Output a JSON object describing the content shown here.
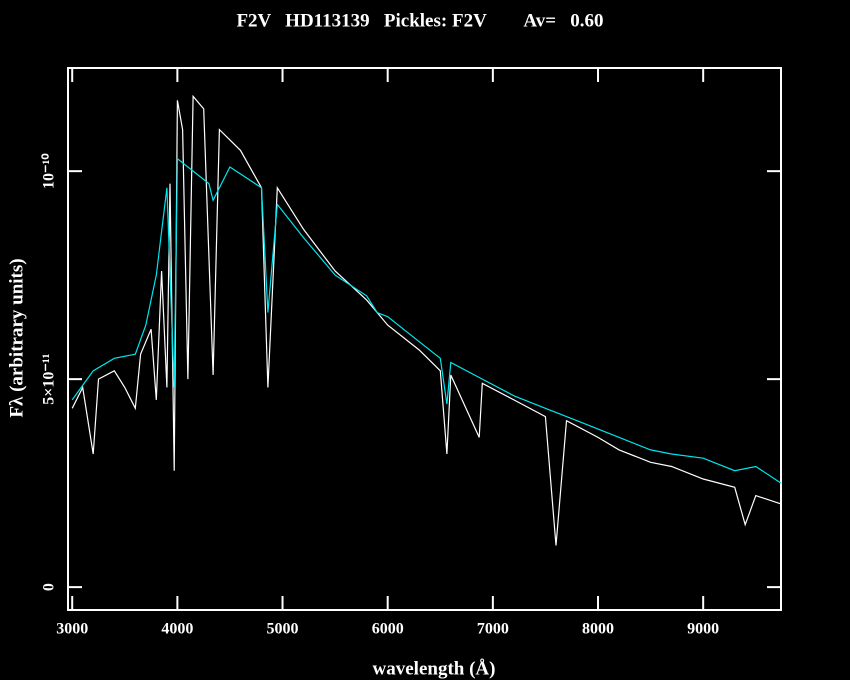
{
  "chart_data": {
    "type": "line",
    "title": "F2V   HD113139   Pickles: F2V        Av=   0.60",
    "xlabel": "wavelength (Å)",
    "ylabel": "Fλ (arbitrary units)",
    "xlim": [
      2960,
      9740
    ],
    "ylim": [
      -5.5e-12,
      1.248e-10
    ],
    "xticks": [
      3000,
      4000,
      5000,
      6000,
      7000,
      8000,
      9000
    ],
    "yticks": [
      0,
      {
        "value": 5e-11,
        "label": "5×10⁻¹¹"
      },
      {
        "value": 1e-10,
        "label": "10⁻¹⁰"
      }
    ],
    "series": [
      {
        "color": "#ffffff",
        "x": [
          3000,
          3100,
          3200,
          3250,
          3400,
          3500,
          3600,
          3650,
          3750,
          3800,
          3850,
          3900,
          3930,
          3970,
          4000,
          4050,
          4100,
          4150,
          4250,
          4340,
          4400,
          4600,
          4800,
          4861,
          4950,
          5200,
          5500,
          5800,
          6000,
          6300,
          6500,
          6563,
          6600,
          6870,
          6900,
          7200,
          7500,
          7600,
          7700,
          8000,
          8200,
          8500,
          8700,
          9000,
          9300,
          9400,
          9500,
          9740
        ],
        "values": [
          4.3e-11,
          4.8e-11,
          3.2e-11,
          5e-11,
          5.2e-11,
          4.8e-11,
          4.3e-11,
          5.6e-11,
          6.2e-11,
          4.5e-11,
          7.6e-11,
          4.8e-11,
          9.7e-11,
          2.8e-11,
          1.17e-10,
          1.1e-10,
          5e-11,
          1.18e-10,
          1.15e-10,
          5.1e-11,
          1.1e-10,
          1.05e-10,
          9.6e-11,
          4.8e-11,
          9.6e-11,
          8.6e-11,
          7.6e-11,
          6.9e-11,
          6.3e-11,
          5.7e-11,
          5.2e-11,
          3.2e-11,
          5.1e-11,
          3.6e-11,
          4.9e-11,
          4.5e-11,
          4.1e-11,
          1e-11,
          4e-11,
          3.6e-11,
          3.3e-11,
          3e-11,
          2.9e-11,
          2.6e-11,
          2.4e-11,
          1.5e-11,
          2.2e-11,
          2e-11
        ]
      },
      {
        "color": "#00e5ee",
        "x": [
          3000,
          3200,
          3400,
          3600,
          3700,
          3800,
          3900,
          3970,
          4000,
          4100,
          4300,
          4340,
          4500,
          4800,
          4861,
          4950,
          5200,
          5500,
          5800,
          5900,
          6000,
          6300,
          6500,
          6563,
          6600,
          6900,
          7200,
          7500,
          7800,
          8100,
          8500,
          8700,
          9000,
          9300,
          9500,
          9740
        ],
        "values": [
          4.5e-11,
          5.2e-11,
          5.5e-11,
          5.6e-11,
          6.3e-11,
          7.5e-11,
          9.6e-11,
          4.8e-11,
          1.03e-10,
          1.01e-10,
          9.7e-11,
          9.3e-11,
          1.01e-10,
          9.6e-11,
          6.6e-11,
          9.2e-11,
          8.4e-11,
          7.5e-11,
          7e-11,
          6.6e-11,
          6.5e-11,
          5.9e-11,
          5.5e-11,
          4.4e-11,
          5.4e-11,
          5e-11,
          4.6e-11,
          4.3e-11,
          4e-11,
          3.7e-11,
          3.3e-11,
          3.2e-11,
          3.1e-11,
          2.8e-11,
          2.9e-11,
          2.5e-11
        ]
      }
    ]
  }
}
